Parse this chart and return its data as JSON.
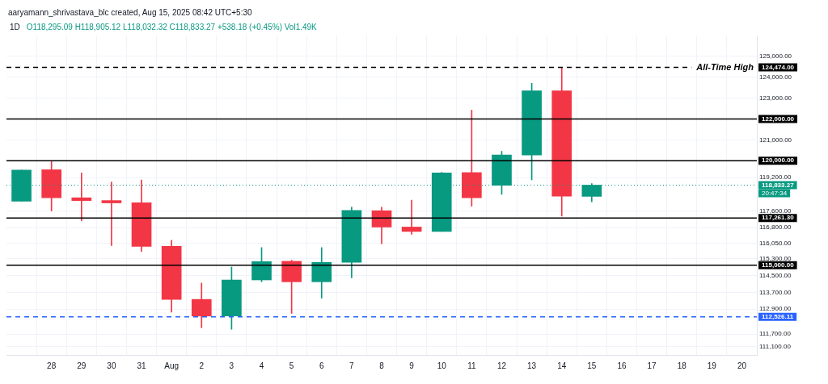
{
  "chart_data": {
    "type": "candlestick",
    "title": "1D",
    "categories": [
      null,
      "28",
      "29",
      "30",
      "31",
      "Aug",
      "2",
      "3",
      "4",
      "5",
      "6",
      "7",
      "8",
      "9",
      "10",
      "11",
      "12",
      "13",
      "14",
      "15",
      "16",
      "17",
      "18",
      "19",
      "20"
    ],
    "ohlc": [
      [
        118068,
        119559,
        118068,
        119559
      ],
      [
        119570,
        119957,
        117594,
        118228
      ],
      [
        118228,
        119420,
        117125,
        118094
      ],
      [
        118094,
        118988,
        115943,
        117982
      ],
      [
        117993,
        119085,
        115656,
        115895
      ],
      [
        115906,
        116193,
        112749,
        113361
      ],
      [
        113361,
        114143,
        112004,
        112563
      ],
      [
        112563,
        114911,
        111929,
        114293
      ],
      [
        114293,
        115843,
        114204,
        115172
      ],
      [
        115187,
        115235,
        112690,
        114204
      ],
      [
        114204,
        115843,
        113420,
        115135
      ],
      [
        115135,
        117781,
        114390,
        117620
      ],
      [
        117609,
        117781,
        116029,
        116826
      ],
      [
        116826,
        118116,
        116476,
        116614
      ],
      [
        116614,
        119447,
        116614,
        119421
      ],
      [
        119435,
        122428,
        117824,
        118228
      ],
      [
        118824,
        120453,
        118392,
        120278
      ],
      [
        120278,
        123707,
        119085,
        123349
      ],
      [
        123349,
        124474,
        117349,
        118300
      ],
      [
        118295.09,
        118905.12,
        118032.32,
        118833.27
      ],
      null,
      null,
      null,
      null,
      null
    ],
    "colors": [
      "#089981",
      "#f23645",
      "#f23645",
      "#f23645",
      "#f23645",
      "#f23645",
      "#f23645",
      "#089981",
      "#089981",
      "#f23645",
      "#089981",
      "#089981",
      "#f23645",
      "#f23645",
      "#089981",
      "#f23645",
      "#089981",
      "#089981",
      "#f23645",
      "#089981",
      null,
      null,
      null,
      null,
      null
    ],
    "ylim": [
      110700,
      126000
    ],
    "yticks": [
      {
        "value": 111100,
        "label": "111,100.00"
      },
      {
        "value": 111700,
        "label": "111,700.00"
      },
      {
        "value": 112900,
        "label": "112,900.00"
      },
      {
        "value": 113700,
        "label": "113,700.00"
      },
      {
        "value": 114500,
        "label": "114,500.00"
      },
      {
        "value": 115300,
        "label": "115,300.00"
      },
      {
        "value": 116050,
        "label": "116,050.00"
      },
      {
        "value": 116800,
        "label": "116,800.00"
      },
      {
        "value": 117600,
        "label": "117,600.00"
      },
      {
        "value": 119200,
        "label": "119,200.00"
      },
      {
        "value": 121000,
        "label": "121,000.00"
      },
      {
        "value": 123000,
        "label": "123,000.00"
      },
      {
        "value": 124000,
        "label": "124,000.00"
      },
      {
        "value": 125000,
        "label": "125,000.00"
      }
    ],
    "ref_lines": [
      {
        "axis": "y",
        "value": 124474,
        "label": "124,474.00",
        "color": "#000000",
        "line_style": "dashed"
      },
      {
        "axis": "y",
        "value": 122000,
        "label": "122,000.00",
        "color": "#000000",
        "line_style": "solid"
      },
      {
        "axis": "y",
        "value": 120000,
        "label": "120,000.00",
        "color": "#000000",
        "line_style": "solid"
      },
      {
        "axis": "y",
        "value": 117261.3,
        "label": "117,261.30",
        "color": "#000000",
        "line_style": "solid"
      },
      {
        "axis": "y",
        "value": 115000,
        "label": "115,000.00",
        "color": "#000000",
        "line_style": "solid"
      },
      {
        "axis": "y",
        "value": 112526.11,
        "label": "112,526.11",
        "color": "#2962ff",
        "line_style": "dashed"
      },
      {
        "axis": "y",
        "value": 118833.27,
        "label": "118,833.27",
        "color": "#089981",
        "line_style": "dotted"
      }
    ],
    "annotations": [
      {
        "text": "All-Time High",
        "y": 124474
      },
      "aaryamann_shrivastava_blc created, Aug 15, 2025 08:42 UTC+5:30",
      "O118,295.09 H118,905.12 L118,032.32 C118,833.27 +538.18 (+0.45%) Vol1.49K",
      "20:47:34"
    ],
    "grid": true,
    "legend": false
  }
}
